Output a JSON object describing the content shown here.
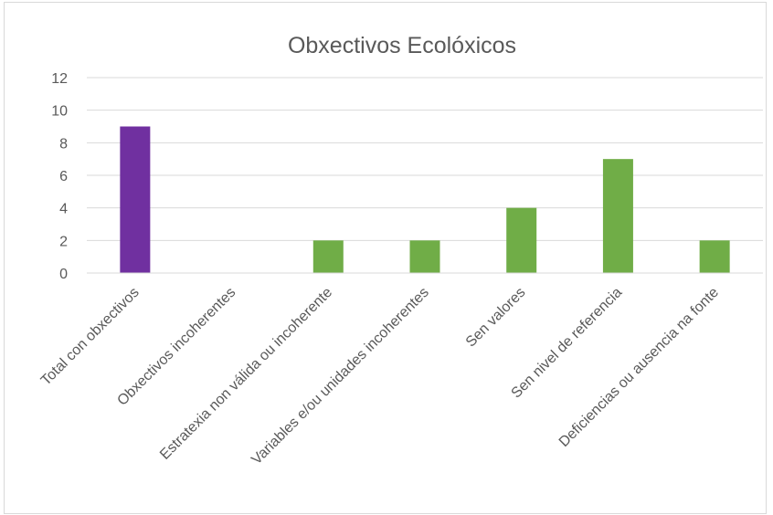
{
  "chart_data": {
    "type": "bar",
    "title": "Obxectivos Ecolóxicos",
    "xlabel": "",
    "ylabel": "",
    "categories": [
      "Total con obxectivos",
      "Obxectivos incoherentes",
      "Estratexia non válida ou incoherente",
      "Variables e/ou unidades incoherentes",
      "Sen valores",
      "Sen nivel de referencia",
      "Deficiencias ou ausencia na fonte"
    ],
    "values": [
      9,
      0,
      2,
      2,
      4,
      7,
      2
    ],
    "bar_colors": [
      "#7030a0",
      "#70ad47",
      "#70ad47",
      "#70ad47",
      "#70ad47",
      "#70ad47",
      "#70ad47"
    ],
    "ylim": [
      0,
      12
    ],
    "yticks": [
      0,
      2,
      4,
      6,
      8,
      10,
      12
    ],
    "grid": true,
    "legend": "none"
  }
}
